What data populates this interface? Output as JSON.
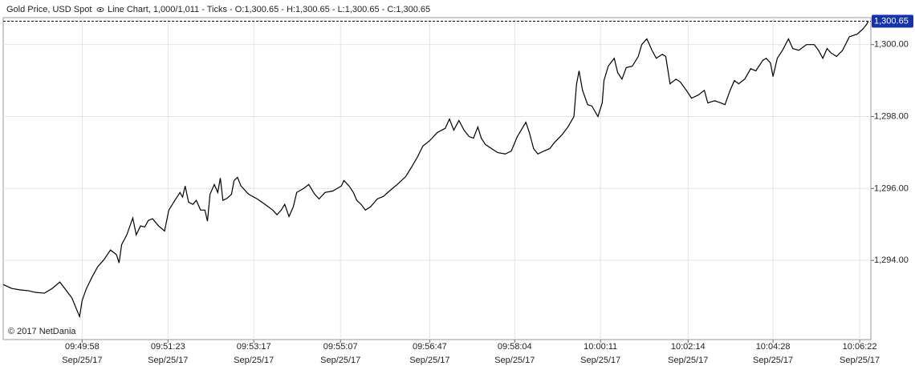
{
  "chart_data": {
    "type": "line",
    "title": "Gold Price, USD Spot",
    "subtitle": "Line Chart, 1,000/1,011 - Ticks - O:1,300.65 - H:1,300.65 - L:1,300.65 - C:1,300.65",
    "annotation": "© 2017 NetDania",
    "color": "#000000",
    "grid": true,
    "last_price": {
      "value": 1300.65,
      "label": "1,300.65"
    },
    "xlim": [
      0,
      1011
    ],
    "ylim": [
      1291.8,
      1300.75
    ],
    "yticks": [
      {
        "value": 1294,
        "label": "1,294.00"
      },
      {
        "value": 1296,
        "label": "1,296.00"
      },
      {
        "value": 1298,
        "label": "1,298.00"
      },
      {
        "value": 1300,
        "label": "1,300.00"
      }
    ],
    "xticks": [
      {
        "value": 92,
        "label": "09:49:58",
        "sublabel": "Sep/25/17"
      },
      {
        "value": 192,
        "label": "09:51:23",
        "sublabel": "Sep/25/17"
      },
      {
        "value": 292,
        "label": "09:53:17",
        "sublabel": "Sep/25/17"
      },
      {
        "value": 393,
        "label": "09:55:07",
        "sublabel": "Sep/25/17"
      },
      {
        "value": 497,
        "label": "09:56:47",
        "sublabel": "Sep/25/17"
      },
      {
        "value": 596,
        "label": "09:58:04",
        "sublabel": "Sep/25/17"
      },
      {
        "value": 696,
        "label": "10:00:11",
        "sublabel": "Sep/25/17"
      },
      {
        "value": 798,
        "label": "10:02:14",
        "sublabel": "Sep/25/17"
      },
      {
        "value": 897,
        "label": "10:04:28",
        "sublabel": "Sep/25/17"
      },
      {
        "value": 998,
        "label": "10:06:22",
        "sublabel": "Sep/25/17"
      }
    ],
    "x": [
      0,
      10,
      20,
      29,
      38,
      48,
      57,
      66,
      73,
      80,
      85,
      89,
      92,
      97,
      104,
      110,
      118,
      125,
      132,
      135,
      138,
      144,
      151,
      155,
      160,
      165,
      169,
      174,
      181,
      188,
      193,
      200,
      206,
      209,
      212,
      216,
      221,
      225,
      230,
      235,
      238,
      241,
      246,
      250,
      253,
      256,
      261,
      266,
      269,
      273,
      277,
      286,
      296,
      305,
      314,
      319,
      324,
      328,
      333,
      338,
      342,
      350,
      356,
      363,
      368,
      375,
      384,
      394,
      397,
      403,
      408,
      412,
      417,
      422,
      428,
      436,
      443,
      450,
      459,
      469,
      476,
      483,
      489,
      497,
      506,
      515,
      520,
      525,
      531,
      537,
      543,
      548,
      553,
      557,
      562,
      569,
      576,
      585,
      592,
      599,
      609,
      613,
      618,
      623,
      630,
      637,
      642,
      651,
      658,
      665,
      668,
      671,
      675,
      681,
      686,
      693,
      698,
      700,
      705,
      712,
      716,
      721,
      726,
      733,
      740,
      744,
      750,
      756,
      761,
      768,
      772,
      777,
      784,
      789,
      796,
      802,
      810,
      817,
      821,
      829,
      836,
      841,
      847,
      852,
      857,
      864,
      871,
      877,
      885,
      889,
      894,
      897,
      902,
      908,
      915,
      920,
      927,
      936,
      945,
      950,
      955,
      960,
      964,
      971,
      978,
      986,
      995,
      1002,
      1006,
      1008
    ],
    "values": [
      1293.33,
      1293.22,
      1293.18,
      1293.16,
      1293.11,
      1293.09,
      1293.22,
      1293.4,
      1293.18,
      1292.96,
      1292.67,
      1292.44,
      1292.89,
      1293.22,
      1293.56,
      1293.82,
      1294.04,
      1294.29,
      1294.16,
      1293.93,
      1294.44,
      1294.71,
      1295.18,
      1294.71,
      1294.96,
      1294.93,
      1295.11,
      1295.16,
      1294.96,
      1294.82,
      1295.4,
      1295.67,
      1295.89,
      1295.76,
      1296.07,
      1295.62,
      1295.56,
      1295.67,
      1295.4,
      1295.4,
      1295.09,
      1295.84,
      1296.11,
      1295.89,
      1296.29,
      1295.67,
      1295.73,
      1295.84,
      1296.22,
      1296.31,
      1296.07,
      1295.84,
      1295.71,
      1295.56,
      1295.4,
      1295.27,
      1295.4,
      1295.56,
      1295.22,
      1295.49,
      1295.89,
      1296.0,
      1296.11,
      1295.84,
      1295.71,
      1295.89,
      1295.93,
      1296.07,
      1296.22,
      1296.07,
      1295.89,
      1295.67,
      1295.56,
      1295.4,
      1295.49,
      1295.71,
      1295.78,
      1295.93,
      1296.11,
      1296.33,
      1296.6,
      1296.89,
      1297.18,
      1297.33,
      1297.56,
      1297.67,
      1297.93,
      1297.62,
      1297.89,
      1297.62,
      1297.44,
      1297.4,
      1297.71,
      1297.4,
      1297.22,
      1297.11,
      1297.0,
      1296.96,
      1297.04,
      1297.44,
      1297.84,
      1297.56,
      1297.11,
      1296.96,
      1297.04,
      1297.11,
      1297.27,
      1297.49,
      1297.71,
      1298.0,
      1298.89,
      1299.27,
      1298.73,
      1298.33,
      1298.29,
      1298.0,
      1298.38,
      1299.0,
      1299.4,
      1299.62,
      1299.22,
      1299.04,
      1299.36,
      1299.4,
      1299.67,
      1300.0,
      1300.16,
      1299.84,
      1299.62,
      1299.73,
      1299.67,
      1298.91,
      1299.04,
      1298.96,
      1298.73,
      1298.51,
      1298.6,
      1298.73,
      1298.38,
      1298.44,
      1298.38,
      1298.33,
      1298.73,
      1299.0,
      1298.91,
      1299.04,
      1299.33,
      1299.27,
      1299.56,
      1299.62,
      1299.49,
      1299.11,
      1299.62,
      1299.84,
      1300.16,
      1299.89,
      1299.84,
      1300.0,
      1300.0,
      1299.84,
      1299.62,
      1299.89,
      1299.78,
      1299.67,
      1299.84,
      1300.22,
      1300.29,
      1300.44,
      1300.56,
      1300.65
    ]
  }
}
